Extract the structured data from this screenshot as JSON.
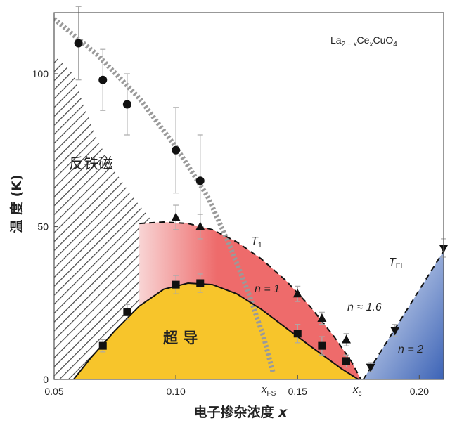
{
  "chart_data": {
    "type": "scatter",
    "title": "La2-xCexCuO4",
    "formula": {
      "a": "La",
      "b": "2 − ",
      "c": "x",
      "d": "Ce",
      "e": "x",
      "f": "CuO",
      "g": "4"
    },
    "xlabel": "电子掺杂浓度 x",
    "xlabel_main": "电子掺杂浓度 ",
    "xlabel_var": "x",
    "ylabel": "温 度 (K)",
    "xlim": [
      0.05,
      0.21
    ],
    "ylim": [
      0,
      120
    ],
    "xticks": [
      "0.05",
      "0.10",
      "0.15",
      "0.20"
    ],
    "xtick_values": [
      0.05,
      0.1,
      0.15,
      0.2
    ],
    "yticks": [
      "0",
      "50",
      "100"
    ],
    "ytick_values": [
      0,
      50,
      100
    ],
    "regions": {
      "antiferro": "反铁磁",
      "superconducting": "超 导"
    },
    "annotations": {
      "t1": {
        "main": "T",
        "sub": "1"
      },
      "tfl": {
        "main": "T",
        "sub": "FL"
      },
      "n1": "n = 1",
      "n16": "n ≈ 1.6",
      "n2": "n = 2",
      "xfs": {
        "main": "x",
        "sub": "FS"
      },
      "xc": {
        "main": "x",
        "sub": "c"
      }
    },
    "series": [
      {
        "name": "antiferromagnetic onset (circles)",
        "marker": "circle",
        "x": [
          0.06,
          0.07,
          0.08,
          0.1,
          0.11
        ],
        "y": [
          110,
          98,
          90,
          75,
          65
        ],
        "err": [
          12,
          10,
          10,
          14,
          15
        ]
      },
      {
        "name": "T1 (triangles up)",
        "marker": "triangle-up",
        "x": [
          0.1,
          0.11,
          0.15,
          0.16,
          0.17
        ],
        "y": [
          53,
          50,
          28,
          20,
          13
        ],
        "err": [
          4,
          4,
          2.5,
          2,
          2
        ]
      },
      {
        "name": "Tc (squares)",
        "marker": "square",
        "x": [
          0.07,
          0.08,
          0.1,
          0.11,
          0.15,
          0.16,
          0.17
        ],
        "y": [
          11,
          22,
          31,
          31.5,
          15,
          11,
          6
        ],
        "err": [
          2,
          2.5,
          3,
          3,
          3,
          3,
          2
        ]
      },
      {
        "name": "TFL (triangles down)",
        "marker": "triangle-down",
        "x": [
          0.18,
          0.19,
          0.21
        ],
        "y": [
          4,
          16,
          43
        ],
        "err": [
          1.5,
          2,
          3
        ]
      }
    ],
    "curves": {
      "tc_dome": {
        "x": [
          0.058,
          0.065,
          0.075,
          0.085,
          0.095,
          0.105,
          0.115,
          0.125,
          0.135,
          0.145,
          0.155,
          0.162,
          0.168,
          0.172,
          0.175
        ],
        "y": [
          0,
          7,
          16,
          24,
          29.5,
          31.5,
          31,
          28,
          23,
          17,
          11,
          7,
          3.5,
          1.5,
          0
        ]
      },
      "t1": {
        "x": [
          0.085,
          0.095,
          0.105,
          0.115,
          0.125,
          0.135,
          0.145,
          0.155,
          0.165,
          0.172,
          0.176
        ],
        "y": [
          51,
          51.5,
          51,
          49,
          45,
          39.5,
          32.5,
          24,
          14,
          6,
          0
        ]
      },
      "tfl": {
        "x": [
          0.177,
          0.21
        ],
        "y": [
          0,
          42
        ]
      },
      "xfs_line": {
        "x": [
          0.05,
          0.068,
          0.085,
          0.1,
          0.113,
          0.122,
          0.13,
          0.136,
          0.14
        ],
        "y": [
          118,
          106,
          92,
          76,
          60,
          44,
          28,
          14,
          2
        ]
      }
    }
  },
  "colors": {
    "superconducting": "#f7c52b",
    "t1_region": "#ee6b6b",
    "t1_region_light": "#f8d4d4",
    "tfl_region_light": "#eef3fb",
    "tfl_region_dark": "#3c63b6",
    "hatch": "#444444",
    "dashed_gray": "#9a9a9a",
    "marker": "#111111",
    "errbar": "#aaaaaa"
  }
}
